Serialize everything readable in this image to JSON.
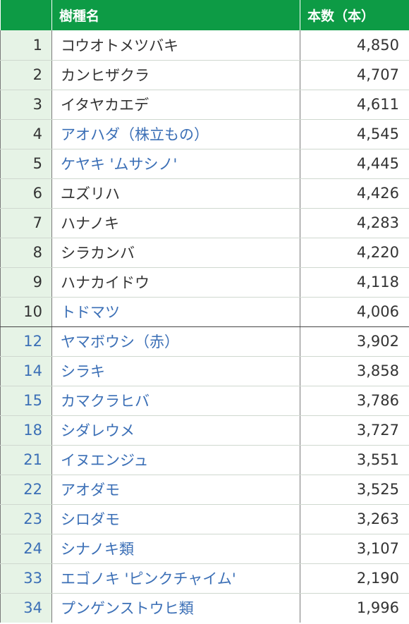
{
  "header": {
    "rank": "",
    "name": "樹種名",
    "count": "本数（本）"
  },
  "rows": [
    {
      "rank": "1",
      "name": "コウオトメツバキ",
      "count": "4,850",
      "style": "dark"
    },
    {
      "rank": "2",
      "name": "カンヒザクラ",
      "count": "4,707",
      "style": "dark"
    },
    {
      "rank": "3",
      "name": "イタヤカエデ",
      "count": "4,611",
      "style": "dark"
    },
    {
      "rank": "4",
      "name": "アオハダ（株立もの）",
      "count": "4,545",
      "style": "namecolor"
    },
    {
      "rank": "5",
      "name": "ケヤキ 'ムサシノ'",
      "count": "4,445",
      "style": "namecolor"
    },
    {
      "rank": "6",
      "name": "ユズリハ",
      "count": "4,426",
      "style": "dark"
    },
    {
      "rank": "7",
      "name": "ハナノキ",
      "count": "4,283",
      "style": "dark"
    },
    {
      "rank": "8",
      "name": "シラカンバ",
      "count": "4,220",
      "style": "dark"
    },
    {
      "rank": "9",
      "name": "ハナカイドウ",
      "count": "4,118",
      "style": "dark"
    },
    {
      "rank": "10",
      "name": "トドマツ",
      "count": "4,006",
      "style": "namecolor"
    },
    {
      "rank": "12",
      "name": "ヤマボウシ（赤）",
      "count": "3,902",
      "style": "blue"
    },
    {
      "rank": "14",
      "name": "シラキ",
      "count": "3,858",
      "style": "blue"
    },
    {
      "rank": "15",
      "name": "カマクラヒバ",
      "count": "3,786",
      "style": "blue"
    },
    {
      "rank": "18",
      "name": "シダレウメ",
      "count": "3,727",
      "style": "blue"
    },
    {
      "rank": "21",
      "name": "イヌエンジュ",
      "count": "3,551",
      "style": "blue"
    },
    {
      "rank": "22",
      "name": "アオダモ",
      "count": "3,525",
      "style": "blue"
    },
    {
      "rank": "23",
      "name": "シロダモ",
      "count": "3,263",
      "style": "blue"
    },
    {
      "rank": "24",
      "name": "シナノキ類",
      "count": "3,107",
      "style": "blue"
    },
    {
      "rank": "33",
      "name": "エゴノキ 'ピンクチャイム'",
      "count": "2,190",
      "style": "blue"
    },
    {
      "rank": "34",
      "name": "プンゲンストウヒ類",
      "count": "1,996",
      "style": "blue"
    }
  ],
  "colors": {
    "header_bg": "#0d9b45",
    "rank_bg": "#e6f3e6",
    "blue_text": "#3b6fb6",
    "dark_text": "#333333"
  }
}
